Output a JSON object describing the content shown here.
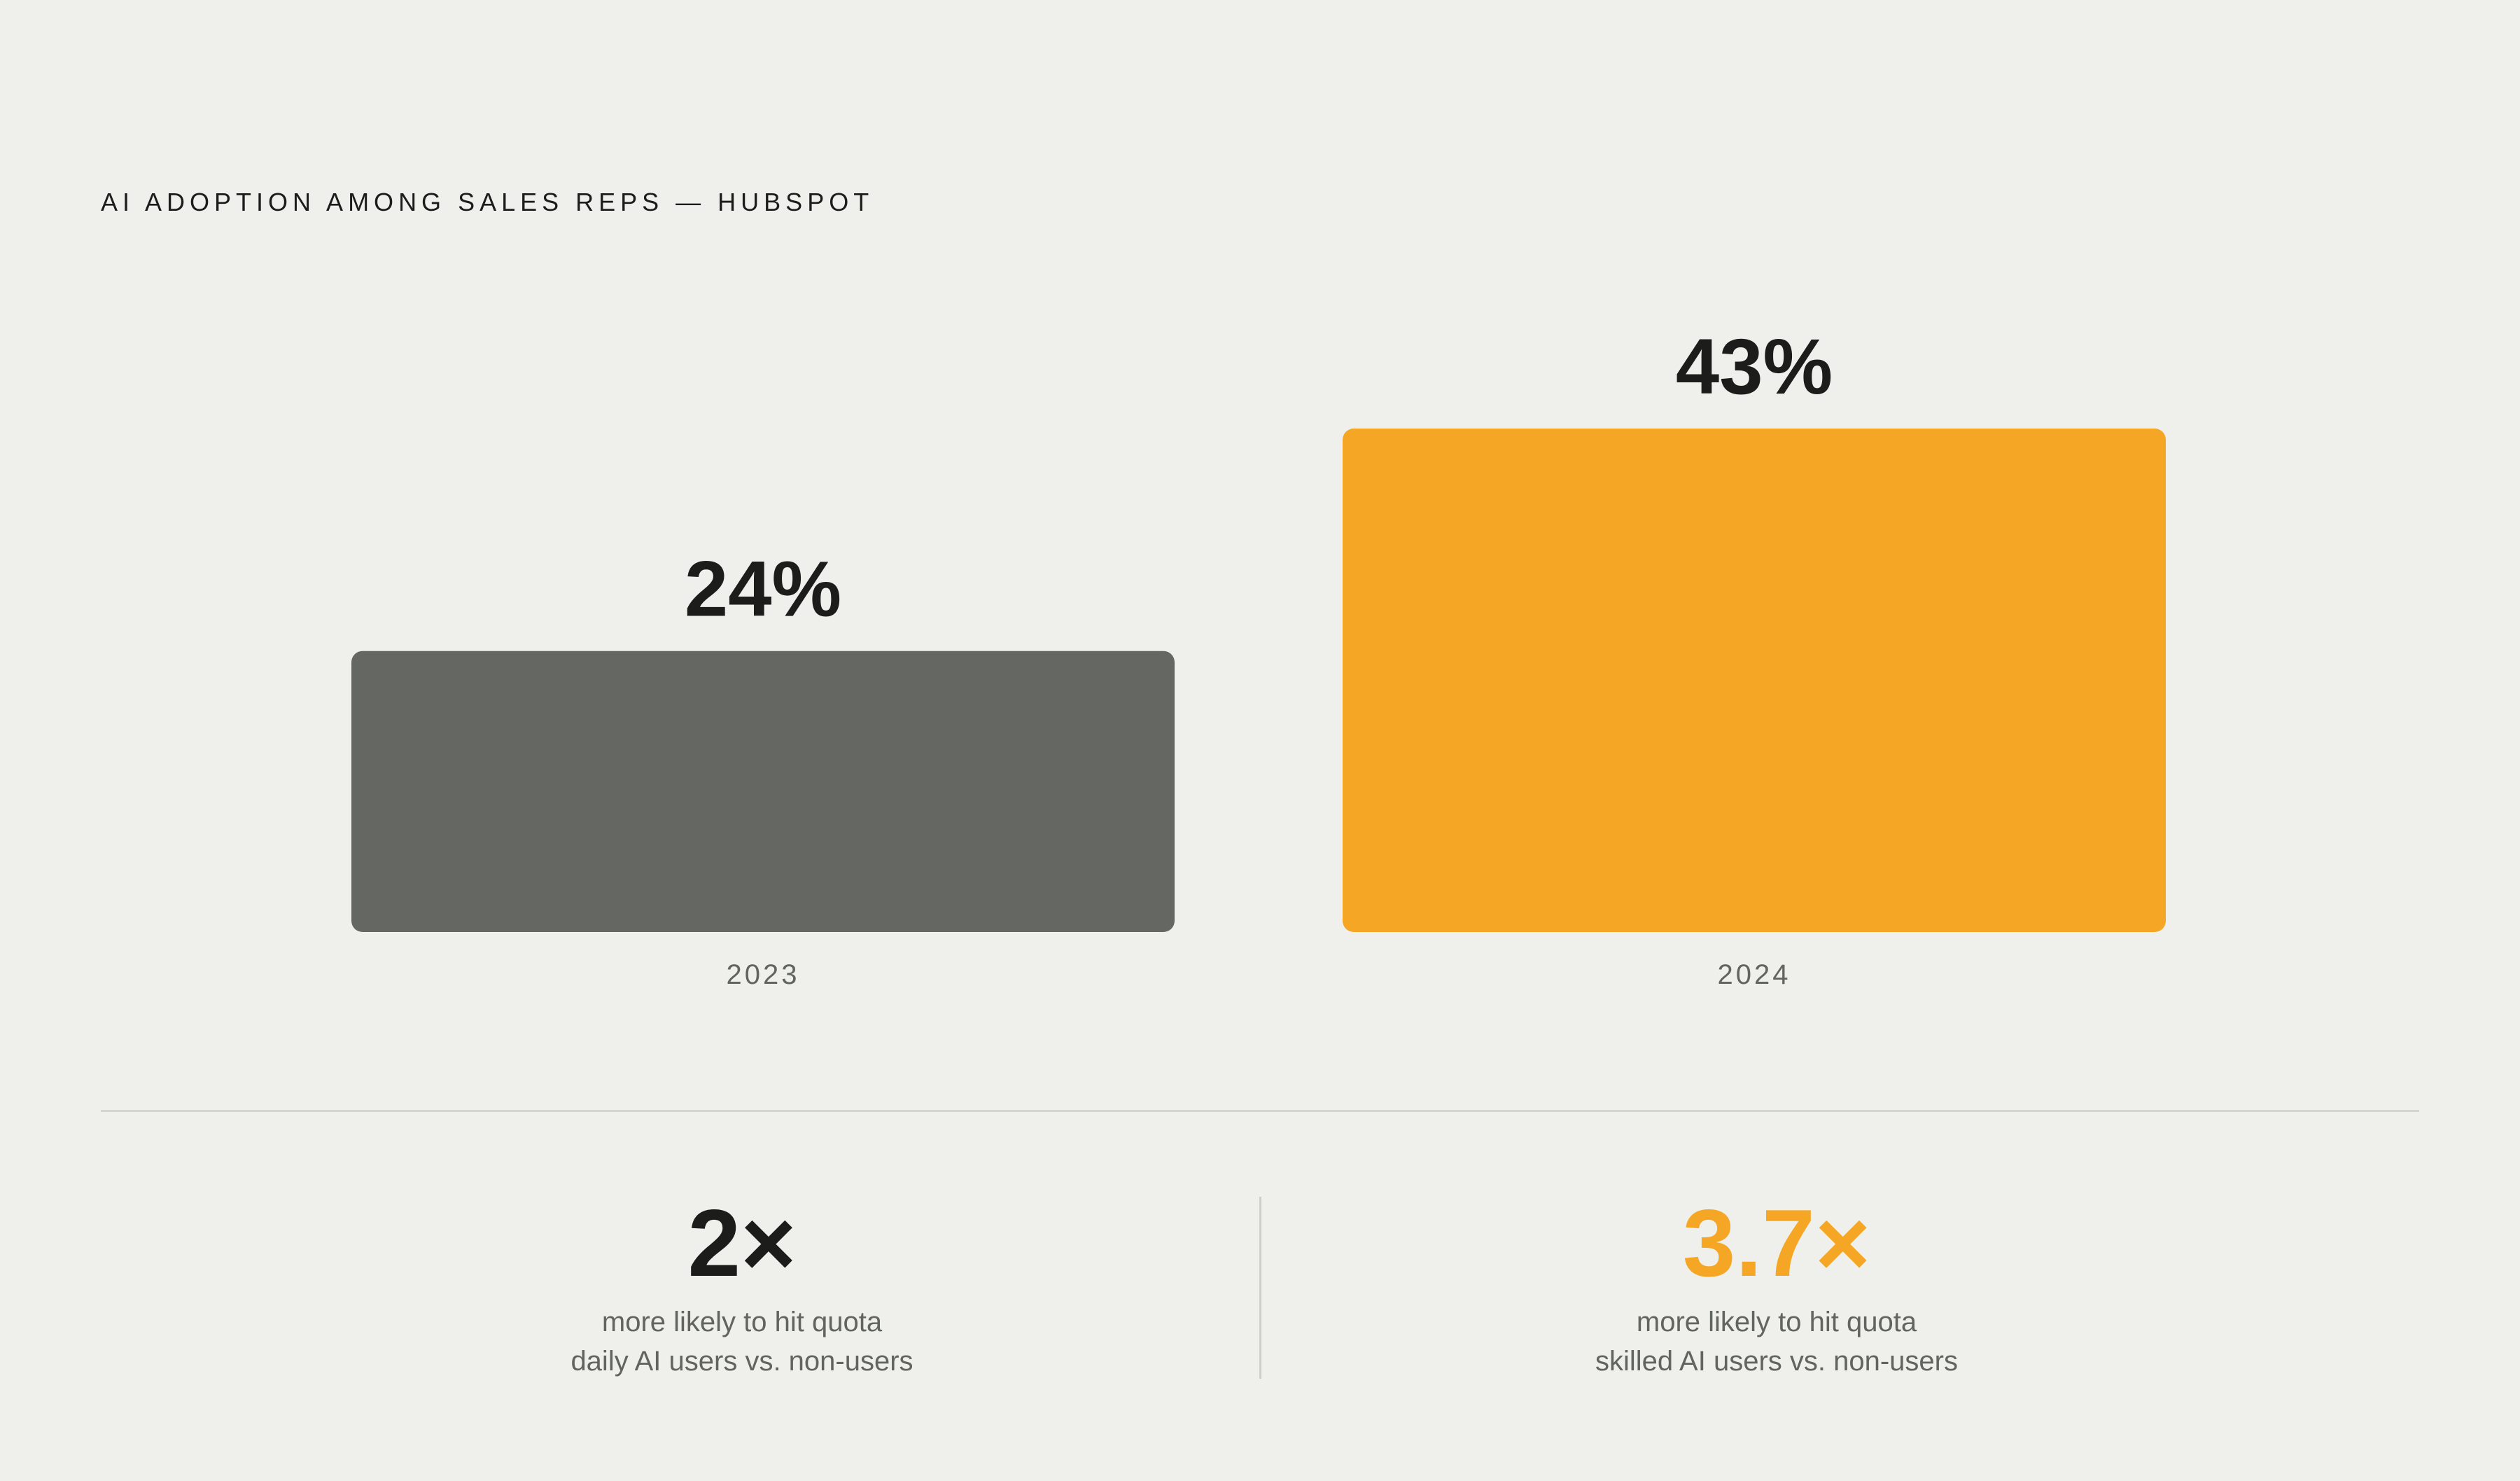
{
  "title": "AI ADOPTION AMONG SALES REPS — HUBSPOT",
  "chart_data": {
    "type": "bar",
    "categories": [
      "2023",
      "2024"
    ],
    "values": [
      24,
      43
    ],
    "value_labels": [
      "24%",
      "43%"
    ],
    "bar_colors": [
      "#646762",
      "#f4a624"
    ],
    "ylim": [
      0,
      43
    ],
    "grid": false
  },
  "stats": [
    {
      "value": "2×",
      "line1": "more likely to hit quota",
      "line2": "daily AI users vs. non-users",
      "color": "#1c1d1b"
    },
    {
      "value": "3.7×",
      "line1": "more likely to hit quota",
      "line2": "skilled AI users vs. non-users",
      "color": "#f4a624"
    }
  ],
  "colors": {
    "background": "#eff0ec",
    "text": "#1c1d1b",
    "muted_text": "#62645f",
    "accent": "#f4a624",
    "neutral_bar": "#646762"
  }
}
